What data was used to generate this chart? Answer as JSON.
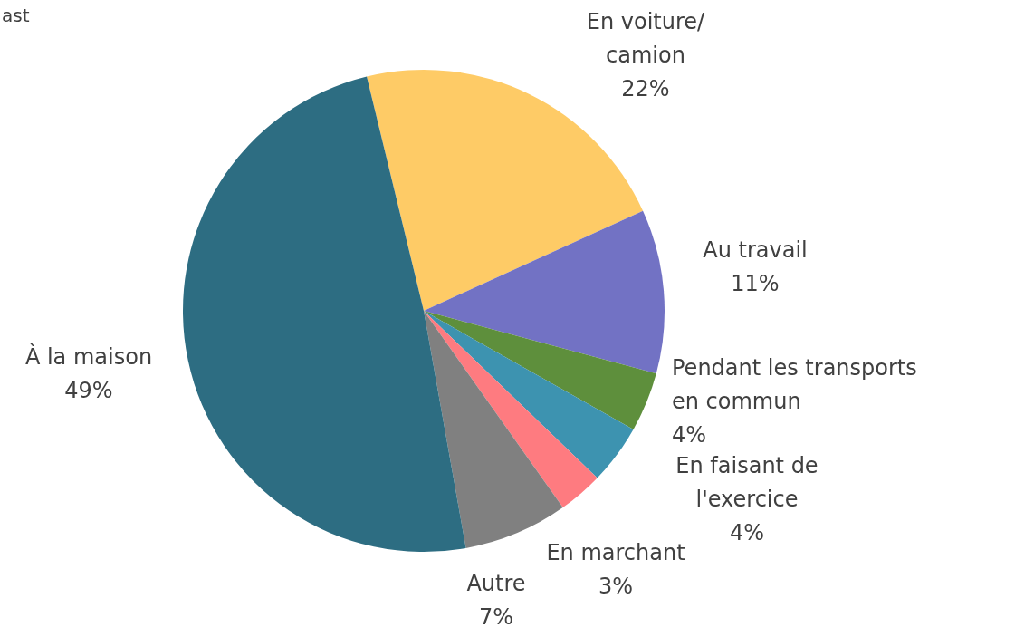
{
  "chart_data": {
    "type": "pie",
    "annotations": [
      "ast"
    ],
    "categories": [
      "En voiture/ camion",
      "Au travail",
      "Pendant les transports en commun",
      "En faisant de l'exercice",
      "En marchant",
      "Autre",
      "À la maison"
    ],
    "values": [
      22,
      11,
      4,
      4,
      3,
      7,
      49
    ],
    "colors": [
      "#fecb66",
      "#7272c4",
      "#5e8f3c",
      "#3d93b0",
      "#fe7b80",
      "#808080",
      "#2d6d82"
    ],
    "value_labels": [
      "22%",
      "11%",
      "4%",
      "4%",
      "3%",
      "7%",
      "49%"
    ]
  }
}
